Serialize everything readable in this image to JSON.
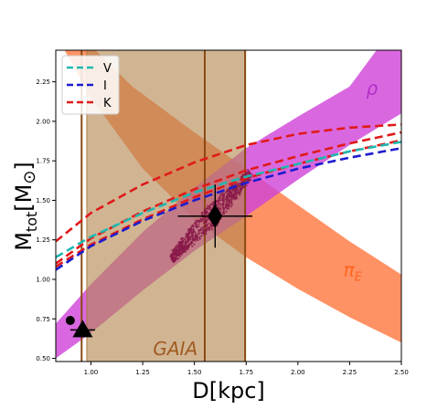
{
  "chart_data": {
    "type": "line",
    "title": "",
    "xlabel": "D[kpc]",
    "ylabel_main": "M",
    "ylabel_sub": "tot",
    "ylabel_rest": "[M",
    "ylabel_sun": "⊙",
    "ylabel_end": "]",
    "xlim": [
      0.83,
      2.5
    ],
    "ylim": [
      0.48,
      2.45
    ],
    "xticks": [
      1.0,
      1.25,
      1.5,
      1.75,
      2.0,
      2.25,
      2.5
    ],
    "xtick_labels": [
      "1.00",
      "1.25",
      "1.50",
      "1.75",
      "2.00",
      "2.25",
      "2.50"
    ],
    "yticks": [
      0.5,
      0.75,
      1.0,
      1.25,
      1.5,
      1.75,
      2.0,
      2.25
    ],
    "ytick_labels": [
      "0.50",
      "0.75",
      "1.00",
      "1.25",
      "1.50",
      "1.75",
      "2.00",
      "2.25"
    ],
    "grid": false,
    "legend_position": "top-left",
    "legend": [
      {
        "label": "V",
        "color": "#1fb8b0"
      },
      {
        "label": "I",
        "color": "#1c1ccc"
      },
      {
        "label": "K",
        "color": "#e01a1a"
      }
    ],
    "bands": [
      {
        "name": "pi_E",
        "color": "#ff7f4a",
        "opacity": 0.85,
        "upper": [
          [
            0.83,
            2.7
          ],
          [
            1.2,
            2.22
          ],
          [
            1.5,
            1.93
          ],
          [
            1.75,
            1.7
          ],
          [
            2.0,
            1.47
          ],
          [
            2.25,
            1.24
          ],
          [
            2.5,
            1.03
          ]
        ],
        "lower": [
          [
            0.83,
            2.55
          ],
          [
            1.0,
            2.15
          ],
          [
            1.25,
            1.7
          ],
          [
            1.5,
            1.38
          ],
          [
            1.75,
            1.14
          ],
          [
            2.0,
            0.94
          ],
          [
            2.25,
            0.76
          ],
          [
            2.5,
            0.6
          ]
        ]
      },
      {
        "name": "rho",
        "color": "#d042d8",
        "opacity": 0.8,
        "upper": [
          [
            0.83,
            0.72
          ],
          [
            1.0,
            0.97
          ],
          [
            1.25,
            1.3
          ],
          [
            1.5,
            1.58
          ],
          [
            1.75,
            1.83
          ],
          [
            2.0,
            2.03
          ],
          [
            2.25,
            2.22
          ],
          [
            2.38,
            2.45
          ],
          [
            2.5,
            2.45
          ]
        ],
        "lower": [
          [
            0.83,
            0.5
          ],
          [
            1.0,
            0.66
          ],
          [
            1.25,
            0.93
          ],
          [
            1.5,
            1.18
          ],
          [
            1.75,
            1.4
          ],
          [
            2.0,
            1.63
          ],
          [
            2.25,
            1.85
          ],
          [
            2.5,
            2.05
          ]
        ]
      }
    ],
    "gaia_band": {
      "x0": 0.98,
      "x1": 1.745,
      "color": "#b48850",
      "opacity": 0.62,
      "center": 1.55,
      "lo_line": 0.955
    },
    "series": [
      {
        "name": "K",
        "color": "#e01a1a",
        "dash": true,
        "points": [
          [
            0.83,
            1.24
          ],
          [
            1.0,
            1.42
          ],
          [
            1.25,
            1.6
          ],
          [
            1.5,
            1.74
          ],
          [
            1.75,
            1.85
          ],
          [
            2.0,
            1.92
          ],
          [
            2.25,
            1.96
          ],
          [
            2.5,
            1.98
          ]
        ]
      },
      {
        "name": "K",
        "color": "#e01a1a",
        "dash": true,
        "points": [
          [
            0.83,
            1.1
          ],
          [
            1.0,
            1.26
          ],
          [
            1.25,
            1.43
          ],
          [
            1.5,
            1.57
          ],
          [
            1.75,
            1.69
          ],
          [
            2.0,
            1.78
          ],
          [
            2.25,
            1.86
          ],
          [
            2.5,
            1.93
          ]
        ]
      },
      {
        "name": "K",
        "color": "#e01a1a",
        "dash": true,
        "points": [
          [
            0.83,
            1.08
          ],
          [
            1.0,
            1.22
          ],
          [
            1.25,
            1.38
          ],
          [
            1.5,
            1.52
          ],
          [
            1.75,
            1.64
          ],
          [
            2.0,
            1.73
          ],
          [
            2.25,
            1.81
          ],
          [
            2.5,
            1.88
          ]
        ]
      },
      {
        "name": "V",
        "color": "#1fb8b0",
        "dash": true,
        "points": [
          [
            0.83,
            1.14
          ],
          [
            1.0,
            1.27
          ],
          [
            1.25,
            1.42
          ],
          [
            1.5,
            1.55
          ],
          [
            1.75,
            1.65
          ],
          [
            2.0,
            1.73
          ],
          [
            2.25,
            1.81
          ],
          [
            2.5,
            1.87
          ]
        ]
      },
      {
        "name": "I",
        "color": "#1c1ccc",
        "dash": true,
        "points": [
          [
            0.83,
            1.06
          ],
          [
            1.0,
            1.21
          ],
          [
            1.25,
            1.37
          ],
          [
            1.5,
            1.5
          ],
          [
            1.75,
            1.61
          ],
          [
            2.0,
            1.7
          ],
          [
            2.25,
            1.77
          ],
          [
            2.5,
            1.83
          ]
        ]
      }
    ],
    "scatter_cloud": {
      "color": "#8a1a4a",
      "center": [
        1.58,
        1.4
      ]
    },
    "markers": [
      {
        "shape": "diamond",
        "x": 1.6,
        "y": 1.4,
        "xerr": 0.18,
        "yerr": 0.2
      },
      {
        "shape": "triangle",
        "x": 0.96,
        "y": 0.68,
        "xerr": 0.06,
        "yerr": 0.0
      },
      {
        "shape": "circle",
        "x": 0.9,
        "y": 0.74,
        "xerr": 0.0,
        "yerr": 0.0
      }
    ],
    "annotations": [
      {
        "text": "ρ",
        "x": 2.33,
        "y": 2.17,
        "color": "#b52ec8",
        "size": 20
      },
      {
        "text": "π",
        "sub": "E",
        "x": 2.22,
        "y": 1.02,
        "color": "#ff6420",
        "size": 20
      },
      {
        "text": "GAIA",
        "x": 1.3,
        "y": 0.52,
        "color": "#a05a20",
        "size": 20
      }
    ]
  }
}
